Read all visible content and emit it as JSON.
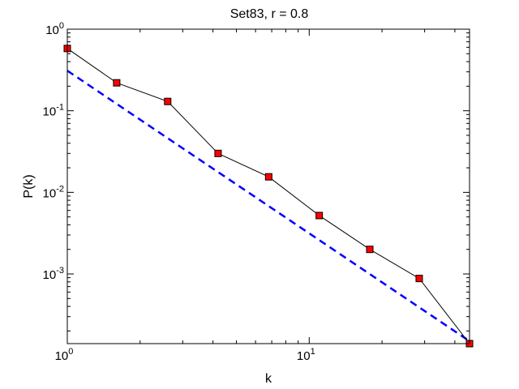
{
  "chart_data": {
    "type": "line",
    "title": "Set83, r = 0.8",
    "xlabel": "k",
    "ylabel": "P(k)",
    "xscale": "log",
    "yscale": "log",
    "xlim": [
      1,
      46
    ],
    "ylim": [
      0.00014,
      1
    ],
    "grid": false,
    "legend": "none",
    "x_ticks": [
      {
        "value": 1,
        "base": "10",
        "exp": "0"
      },
      {
        "value": 10,
        "base": "10",
        "exp": "1"
      }
    ],
    "y_ticks": [
      {
        "value": 1,
        "base": "10",
        "exp": "0"
      },
      {
        "value": 0.1,
        "base": "10",
        "exp": "-1"
      },
      {
        "value": 0.01,
        "base": "10",
        "exp": "-2"
      },
      {
        "value": 0.001,
        "base": "10",
        "exp": "-3"
      }
    ],
    "series": [
      {
        "style": "solid-black-with-red-square-markers",
        "color": "#000000",
        "marker_color": "#ff0000",
        "x": [
          1.0,
          1.6,
          2.6,
          4.2,
          6.8,
          11.0,
          17.8,
          28.5,
          46.0
        ],
        "y": [
          0.58,
          0.22,
          0.13,
          0.03,
          0.0155,
          0.0052,
          0.002,
          0.00088,
          0.00014
        ]
      },
      {
        "style": "dashed-blue-fit",
        "color": "#0000ff",
        "x": [
          1.0,
          46.0
        ],
        "y": [
          0.31,
          0.00015
        ]
      }
    ]
  }
}
